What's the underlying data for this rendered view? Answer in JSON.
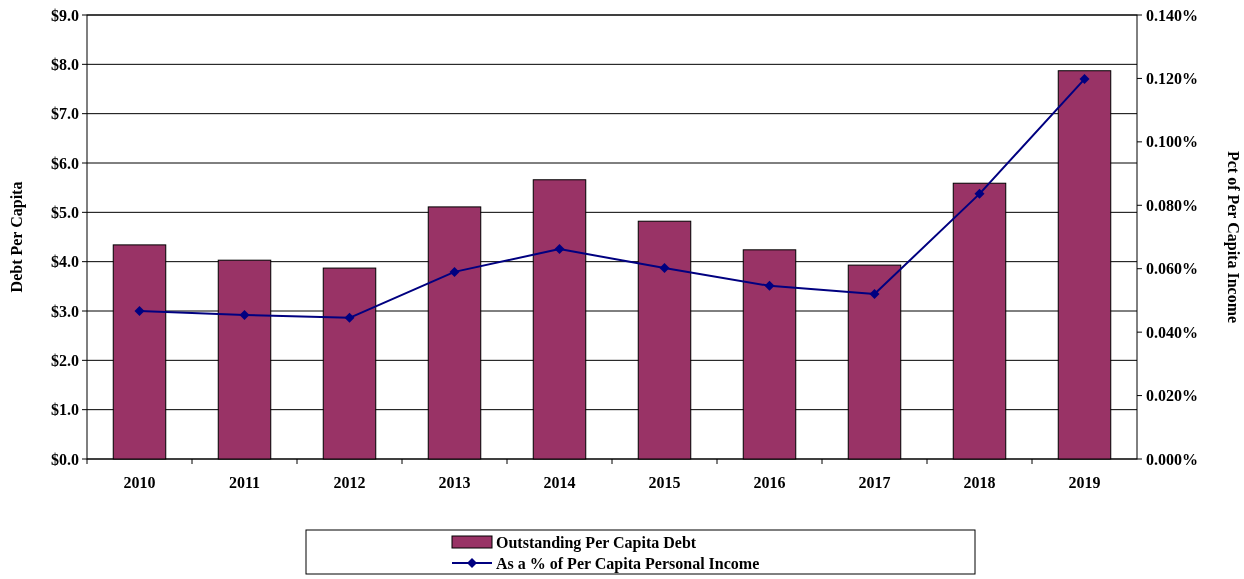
{
  "chart_data": {
    "type": "bar",
    "categories": [
      "2010",
      "2011",
      "2012",
      "2013",
      "2014",
      "2015",
      "2016",
      "2017",
      "2018",
      "2019"
    ],
    "ylabel": "Debt Per Capita",
    "y2label": "Pct of Per Capita Income",
    "series": [
      {
        "name": "Outstanding Per Capita Debt",
        "color": "#993366",
        "values": [
          4.34,
          4.03,
          3.87,
          5.11,
          5.66,
          4.82,
          4.24,
          3.93,
          5.59,
          7.87
        ]
      },
      {
        "name": "As a % of Per Capita Personal Income",
        "type": "line",
        "axis": "y2",
        "color": "#000080",
        "marker": "diamond",
        "values": [
          0.0467,
          0.0454,
          0.0445,
          0.059,
          0.0662,
          0.0602,
          0.0546,
          0.052,
          0.0836,
          0.1198
        ]
      }
    ],
    "ylim": [
      0,
      9
    ],
    "yticks": [
      {
        "value": 0,
        "label": "$0.0"
      },
      {
        "value": 1,
        "label": "$1.0"
      },
      {
        "value": 2,
        "label": "$2.0"
      },
      {
        "value": 3,
        "label": "$3.0"
      },
      {
        "value": 4,
        "label": "$4.0"
      },
      {
        "value": 5,
        "label": "$5.0"
      },
      {
        "value": 6,
        "label": "$6.0"
      },
      {
        "value": 7,
        "label": "$7.0"
      },
      {
        "value": 8,
        "label": "$8.0"
      },
      {
        "value": 9,
        "label": "$9.0"
      }
    ],
    "y2lim": [
      0,
      0.14
    ],
    "y2ticks": [
      {
        "value": 0,
        "label": "0.000%"
      },
      {
        "value": 0.02,
        "label": "0.020%"
      },
      {
        "value": 0.04,
        "label": "0.040%"
      },
      {
        "value": 0.06,
        "label": "0.060%"
      },
      {
        "value": 0.08,
        "label": "0.080%"
      },
      {
        "value": 0.1,
        "label": "0.100%"
      },
      {
        "value": 0.12,
        "label": "0.120%"
      },
      {
        "value": 0.14,
        "label": "0.140%"
      }
    ],
    "grid": "y",
    "legend": "bottom"
  }
}
